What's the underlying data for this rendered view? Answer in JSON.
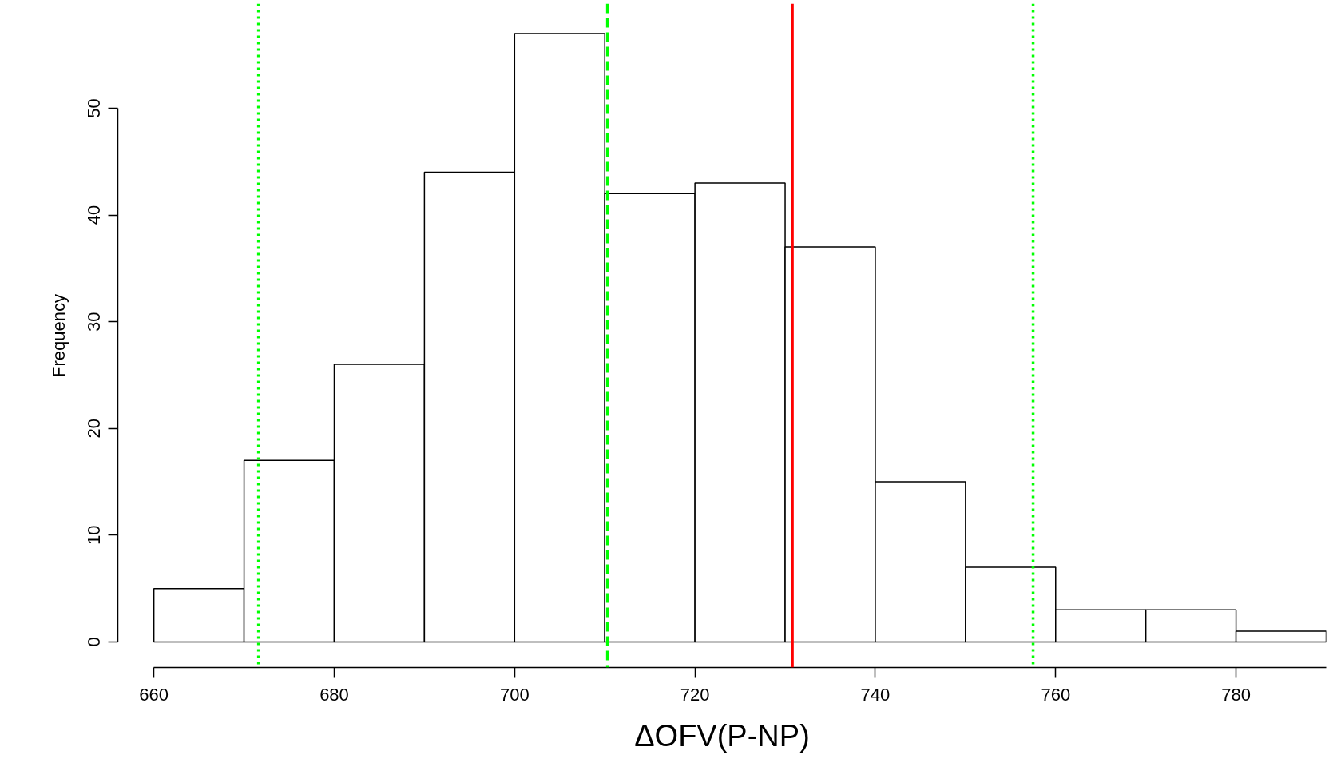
{
  "chart_data": {
    "type": "histogram",
    "xlabel": "ΔOFV(P-NP)",
    "ylabel": "Frequency",
    "bins": [
      660,
      670,
      680,
      690,
      700,
      710,
      720,
      730,
      740,
      750,
      760,
      770,
      780,
      790
    ],
    "values": [
      5,
      17,
      26,
      44,
      57,
      42,
      43,
      37,
      15,
      7,
      3,
      3,
      1
    ],
    "color": "#ffffff",
    "xlim": [
      656,
      790
    ],
    "ylim": [
      -2.4,
      59.8
    ],
    "xticks": [
      660,
      680,
      700,
      720,
      740,
      760,
      780
    ],
    "yticks": [
      0,
      10,
      20,
      30,
      40,
      50
    ],
    "grid": false,
    "ref_lines": [
      {
        "axis": "x",
        "value": 671.6,
        "label": null,
        "color": "#00ff00",
        "line_style": "dotted"
      },
      {
        "axis": "x",
        "value": 710.3,
        "label": null,
        "color": "#00ff00",
        "line_style": "dashed"
      },
      {
        "axis": "x",
        "value": 730.8,
        "label": null,
        "color": "#ff0000",
        "line_style": "solid"
      },
      {
        "axis": "x",
        "value": 757.5,
        "label": null,
        "color": "#00ff00",
        "line_style": "dotted"
      }
    ]
  }
}
